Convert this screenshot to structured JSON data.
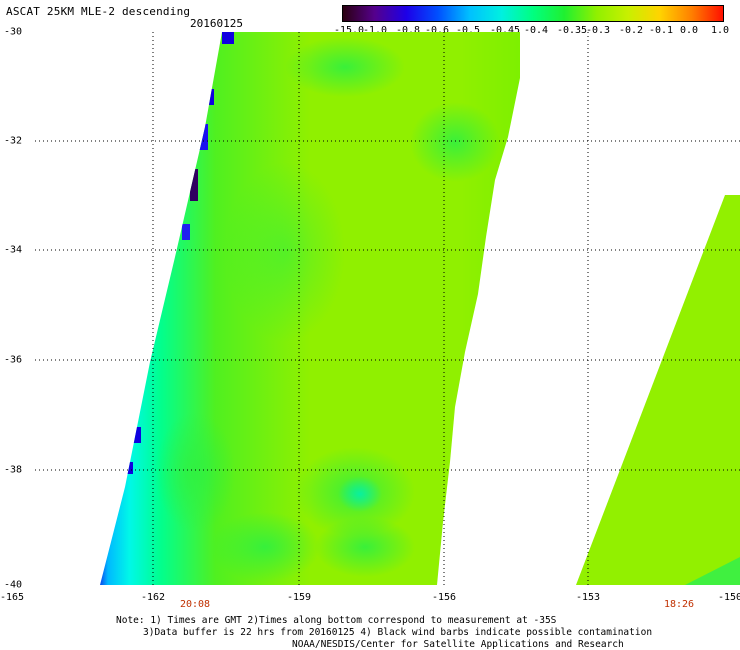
{
  "header": {
    "title": "ASCAT 25KM MLE-2 descending",
    "date": "20160125"
  },
  "colorbar": {
    "labels": [
      "-15.0",
      "-1.0",
      "-0.8",
      "-0.6",
      "-0.5",
      "-0.45",
      "-0.4",
      "-0.35",
      "-0.3",
      "-0.2",
      "-0.1",
      "0.0",
      "1.0"
    ],
    "colors": [
      "#2a0010",
      "#55008c",
      "#1d00e8",
      "#0050ff",
      "#00c0ff",
      "#00f0e0",
      "#00ff80",
      "#20f030",
      "#90f000",
      "#c8f000",
      "#ffd400",
      "#ff8000",
      "#ff1000"
    ]
  },
  "axes": {
    "y_ticks": [
      "-30",
      "-32",
      "-34",
      "-36",
      "-38",
      "-40"
    ],
    "x_ticks": [
      "-165",
      "-162",
      "-159",
      "-156",
      "-153",
      "-150"
    ],
    "xlim": [
      -165,
      -150
    ],
    "ylim": [
      -40,
      -30
    ]
  },
  "pass_times": [
    "20:08",
    "18:26"
  ],
  "notes": [
    "Note: 1) Times are GMT 2)Times along bottom correspond to measurement at -35S",
    "3)Data buffer is 22 hrs from 20160125 4) Black wind barbs indicate possible contamination",
    "NOAA/NESDIS/Center for Satellite Applications and Research"
  ]
}
